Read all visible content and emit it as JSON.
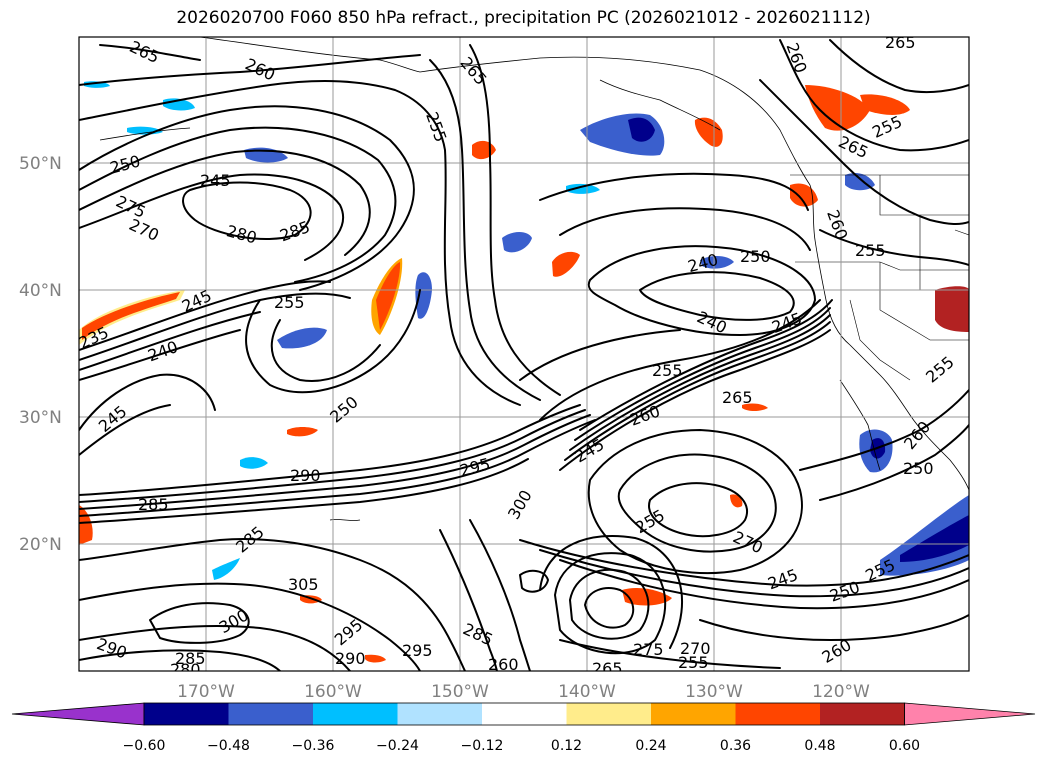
{
  "title": "2026020700 F060 850 hPa refract., precipitation PC (2026021012 - 2026021112)",
  "map": {
    "lat_labels": [
      "50°N",
      "40°N",
      "30°N",
      "20°N"
    ],
    "lon_labels": [
      "170°W",
      "160°W",
      "150°W",
      "140°W",
      "130°W",
      "120°W"
    ],
    "contour_labels": [
      "265",
      "260",
      "265",
      "255",
      "265",
      "260",
      "255",
      "265",
      "250",
      "245",
      "275",
      "270",
      "280",
      "285",
      "255",
      "245",
      "235",
      "240",
      "250",
      "245",
      "290",
      "285",
      "285",
      "295",
      "300",
      "305",
      "300",
      "290",
      "295",
      "285",
      "280",
      "290",
      "295",
      "285",
      "260",
      "265",
      "275",
      "270",
      "255",
      "260",
      "250",
      "245",
      "255",
      "260",
      "265",
      "240",
      "240",
      "245",
      "250",
      "255",
      "260",
      "255",
      "270",
      "245",
      "255",
      "260",
      "250",
      "255"
    ],
    "precip_colors": {
      "strong_negative": "#00008b",
      "moderate_negative": "#3a5fcd",
      "weak_negative": "#00bfff",
      "faint_negative": "#b0e2ff",
      "faint_positive": "#ffec8b",
      "weak_positive": "#ffa500",
      "moderate_positive": "#ff4500",
      "strong_positive": "#b22222"
    }
  },
  "colorbar": {
    "ticks": [
      "−0.60",
      "−0.48",
      "−0.36",
      "−0.24",
      "−0.12",
      "0.12",
      "0.24",
      "0.36",
      "0.48",
      "0.60"
    ],
    "colors": [
      "#9932cc",
      "#00008b",
      "#3a5fcd",
      "#00bfff",
      "#b0e2ff",
      "#ffffff",
      "#ffec8b",
      "#ffa500",
      "#ff4500",
      "#b22222",
      "#ff82ab"
    ]
  }
}
